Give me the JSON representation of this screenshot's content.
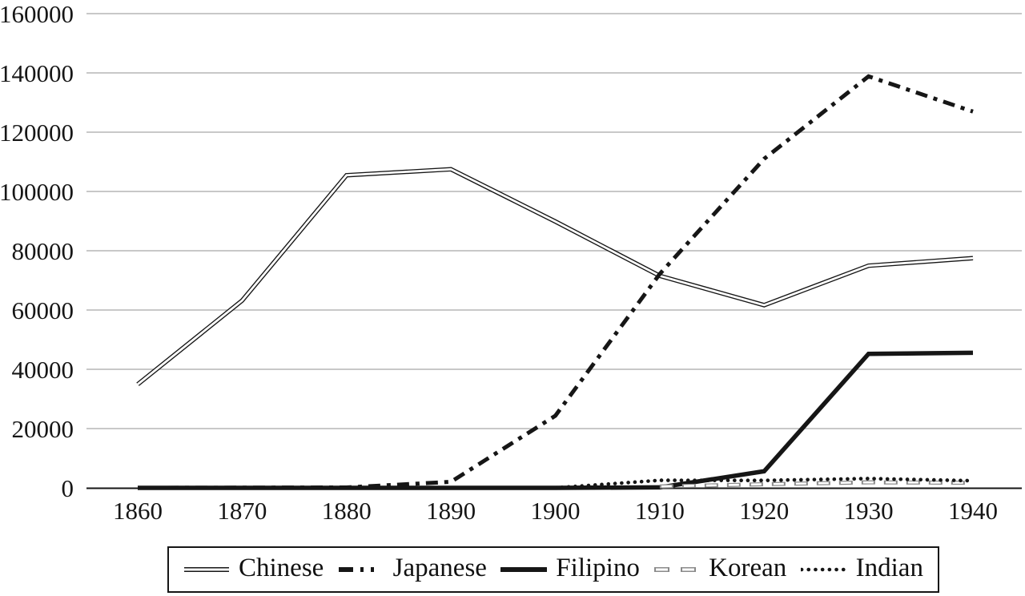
{
  "chart_data": {
    "type": "line",
    "title": "",
    "xlabel": "",
    "ylabel": "",
    "categories": [
      "1860",
      "1870",
      "1880",
      "1890",
      "1900",
      "1910",
      "1920",
      "1930",
      "1940"
    ],
    "ylim": [
      0,
      160000
    ],
    "y_ticks": [
      0,
      20000,
      40000,
      60000,
      80000,
      100000,
      120000,
      140000,
      160000
    ],
    "grid": "horizontal",
    "legend_position": "bottom-boxed",
    "series": [
      {
        "name": "Chinese",
        "style": "double-line",
        "values": [
          34933,
          63199,
          105465,
          107488,
          89863,
          71531,
          61639,
          74954,
          77504
        ]
      },
      {
        "name": "Japanese",
        "style": "dash-dot",
        "values": [
          0,
          55,
          148,
          2039,
          24326,
          72157,
          111010,
          138834,
          126947
        ]
      },
      {
        "name": "Filipino",
        "style": "solid-thick",
        "values": [
          0,
          0,
          0,
          0,
          0,
          160,
          5603,
          45208,
          45563
        ]
      },
      {
        "name": "Korean",
        "style": "dash-outline",
        "values": [
          null,
          null,
          null,
          null,
          null,
          462,
          1224,
          1860,
          1711
        ]
      },
      {
        "name": "Indian",
        "style": "dotted",
        "values": [
          null,
          null,
          null,
          null,
          0,
          2545,
          2507,
          3130,
          2405
        ]
      }
    ],
    "colors": {
      "line_black": "#161616",
      "korean_gray": "#8a8a8a",
      "grid": "#b5b5b5",
      "axis": "#161616",
      "background": "#ffffff",
      "inner_white": "#ffffff"
    }
  }
}
